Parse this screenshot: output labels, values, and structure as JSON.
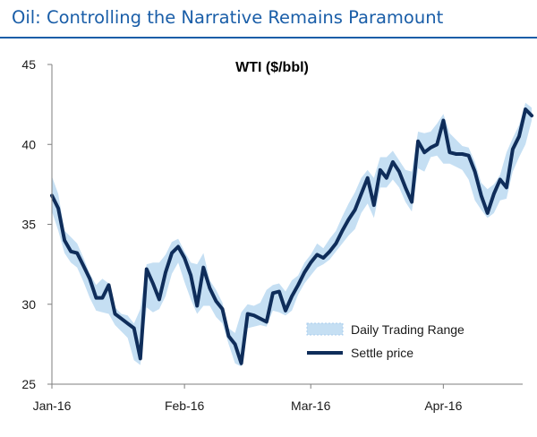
{
  "page": {
    "title": "Oil: Controlling the Narrative Remains Paramount"
  },
  "colors": {
    "title": "#1a5ea8",
    "settle": "#0f2d5a",
    "range": "#c5dff3",
    "axis": "#7f7f7f"
  },
  "chart_data": {
    "type": "line",
    "title": "WTI ($/bbl)",
    "ylim": [
      25,
      45
    ],
    "yticks": [
      25,
      30,
      35,
      40,
      45
    ],
    "xlabels": [
      "Jan-16",
      "Feb-16",
      "Mar-16",
      "Apr-16"
    ],
    "xlabel_positions": [
      0,
      21,
      41,
      62
    ],
    "xlim": [
      0,
      74
    ],
    "legend": {
      "placement": "bottom-right",
      "range_label": "Daily Trading Range",
      "settle_label": "Settle price"
    },
    "series": [
      {
        "name": "Settle price",
        "values": [
          36.8,
          36.0,
          34.0,
          33.3,
          33.2,
          32.4,
          31.6,
          30.4,
          30.4,
          31.2,
          29.4,
          29.1,
          28.8,
          28.5,
          26.6,
          32.2,
          31.3,
          30.3,
          32.0,
          33.2,
          33.6,
          32.9,
          31.8,
          29.9,
          32.3,
          31.0,
          30.2,
          29.7,
          28.0,
          27.5,
          26.3,
          29.4,
          29.3,
          29.1,
          28.9,
          30.7,
          30.8,
          29.6,
          30.5,
          31.2,
          32.0,
          32.6,
          33.1,
          32.9,
          33.3,
          33.8,
          34.6,
          35.3,
          35.9,
          36.9,
          37.9,
          36.2,
          38.4,
          37.9,
          38.9,
          38.3,
          37.3,
          36.4,
          40.2,
          39.5,
          39.8,
          40.0,
          41.5,
          39.5,
          39.4,
          39.4,
          39.3,
          38.3,
          36.8,
          35.7,
          36.9,
          37.8,
          37.3,
          39.7,
          40.5,
          42.2,
          41.8
        ]
      },
      {
        "name": "Daily Trading Range",
        "low": [
          35.8,
          34.6,
          33.2,
          32.6,
          32.3,
          31.4,
          30.4,
          29.6,
          29.5,
          29.4,
          28.7,
          28.3,
          27.9,
          26.5,
          26.2,
          29.8,
          29.5,
          29.7,
          30.5,
          31.9,
          32.6,
          31.4,
          30.3,
          29.4,
          29.9,
          29.9,
          29.2,
          28.8,
          27.5,
          26.3,
          26.1,
          28.5,
          28.6,
          28.7,
          28.6,
          29.6,
          29.5,
          29.3,
          29.6,
          30.6,
          31.3,
          31.8,
          32.3,
          32.5,
          32.8,
          33.3,
          33.8,
          34.3,
          34.7,
          35.7,
          36.3,
          35.4,
          37.3,
          37.3,
          37.8,
          37.3,
          36.4,
          35.8,
          38.5,
          38.3,
          39.2,
          39.3,
          38.8,
          38.8,
          38.6,
          38.4,
          37.8,
          36.5,
          35.9,
          35.4,
          35.7,
          36.5,
          36.6,
          38.3,
          39.2,
          40.0,
          41.5
        ],
        "high": [
          38.0,
          36.9,
          34.6,
          34.2,
          33.8,
          32.9,
          31.9,
          31.2,
          31.6,
          31.3,
          29.8,
          29.4,
          29.3,
          28.8,
          29.7,
          32.5,
          32.6,
          32.6,
          33.1,
          33.9,
          34.1,
          33.3,
          32.6,
          32.5,
          33.2,
          31.5,
          30.9,
          30.1,
          28.5,
          28.2,
          29.5,
          30.0,
          29.9,
          30.1,
          30.9,
          31.2,
          31.3,
          30.8,
          31.5,
          31.8,
          32.6,
          33.1,
          33.8,
          33.5,
          34.1,
          34.6,
          35.5,
          36.3,
          37.0,
          37.9,
          38.4,
          37.9,
          39.2,
          39.2,
          39.6,
          39.0,
          38.4,
          38.3,
          40.8,
          40.7,
          40.8,
          41.3,
          41.9,
          40.7,
          40.3,
          39.9,
          39.8,
          38.9,
          37.6,
          37.2,
          37.5,
          38.1,
          39.5,
          40.4,
          41.2,
          42.6,
          42.3
        ]
      }
    ]
  }
}
